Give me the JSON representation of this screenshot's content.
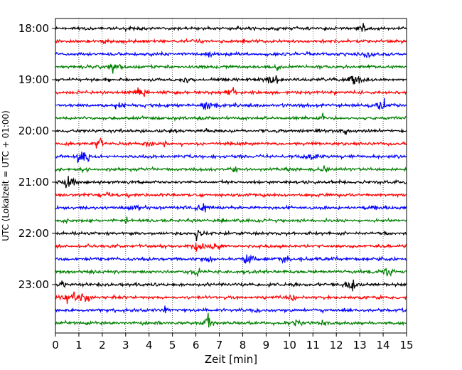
{
  "chart_data": {
    "type": "line",
    "xlabel": "Zeit  [min]",
    "ylabel": "UTC (Lokalzeit = UTC + 01:00)",
    "xlim": [
      0,
      15
    ],
    "x_ticks": [
      0,
      1,
      2,
      3,
      4,
      5,
      6,
      7,
      8,
      9,
      10,
      11,
      12,
      13,
      14,
      15
    ],
    "x_tick_labels": [
      "0",
      "1",
      "2",
      "3",
      "4",
      "5",
      "6",
      "7",
      "8",
      "9",
      "10",
      "11",
      "12",
      "13",
      "14",
      "15"
    ],
    "y_tick_labels": [
      "18:00",
      "19:00",
      "20:00",
      "21:00",
      "22:00",
      "23:00"
    ],
    "grid": "vertical-dotted",
    "trace_interval_min": 15,
    "color_cycle": [
      "#000000",
      "#ff0000",
      "#0000ff",
      "#008000"
    ],
    "series": [
      {
        "start": "18:00"
      },
      {
        "start": "18:15"
      },
      {
        "start": "18:30"
      },
      {
        "start": "18:45"
      },
      {
        "start": "19:00"
      },
      {
        "start": "19:15"
      },
      {
        "start": "19:30"
      },
      {
        "start": "19:45"
      },
      {
        "start": "20:00"
      },
      {
        "start": "20:15"
      },
      {
        "start": "20:30"
      },
      {
        "start": "20:45"
      },
      {
        "start": "21:00"
      },
      {
        "start": "21:15"
      },
      {
        "start": "21:30"
      },
      {
        "start": "21:45"
      },
      {
        "start": "22:00"
      },
      {
        "start": "22:15"
      },
      {
        "start": "22:30"
      },
      {
        "start": "22:45"
      },
      {
        "start": "23:00"
      },
      {
        "start": "23:15"
      },
      {
        "start": "23:30"
      },
      {
        "start": "23:45"
      }
    ]
  }
}
